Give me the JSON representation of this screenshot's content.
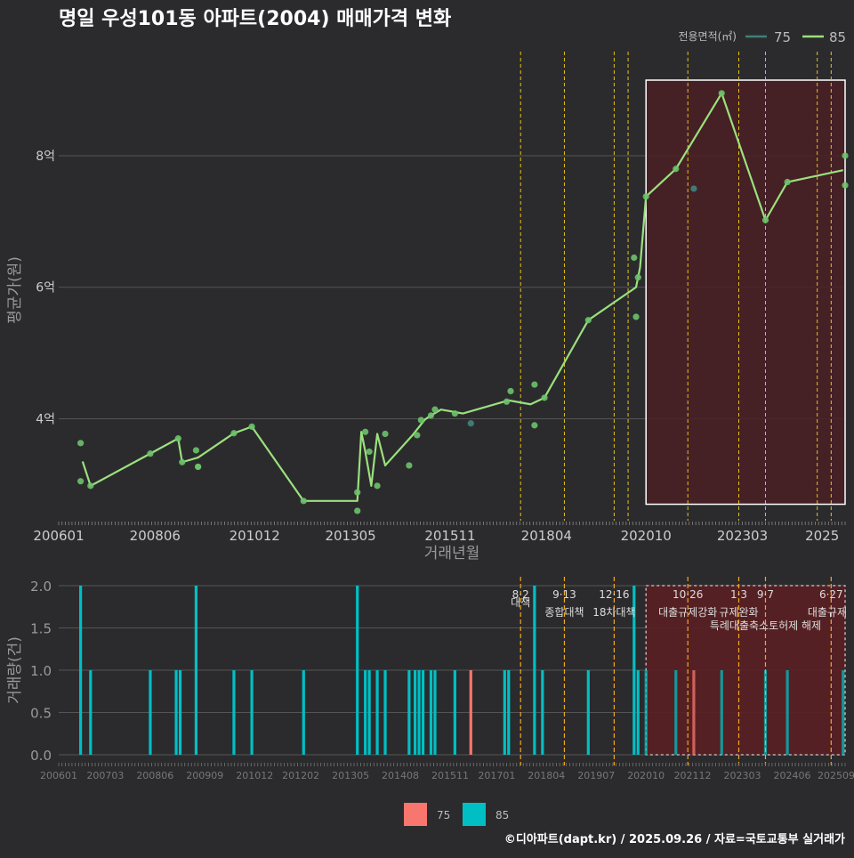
{
  "title": "명일 우성101동 아파트(2004) 매매가격 변화",
  "footer": "©디아파트(dapt.kr) / 2025.09.26 / 자료=국토교통부 실거래가",
  "colors": {
    "background": "#2b2b2d",
    "grid": "#555555",
    "line85": "#9be07d",
    "point85": "#6cc36a",
    "point75": "#3f7f79",
    "bar75": "#f8766d",
    "bar85": "#00bfc4",
    "policy": "#e6c21a",
    "highlight_fill": "#4a1f24",
    "text": "#dddddd",
    "axis_text": "#cccccc"
  },
  "chart_data": [
    {
      "type": "line",
      "title": "명일 우성101동 아파트(2004) 매매가격 변화",
      "xlabel": "거래년월",
      "ylabel": "평균가(원)",
      "xlim": [
        2006.0,
        2025.75
      ],
      "ylim": [
        2.45,
        9.8
      ],
      "x_tick_values": [
        2006.0,
        2008.42,
        2010.92,
        2013.33,
        2015.83,
        2018.25,
        2020.75,
        2023.17,
        2025.6
      ],
      "x_tick_labels": [
        "200601",
        "200806",
        "201012",
        "201305",
        "201511",
        "201804",
        "202010",
        "202303",
        "2025"
      ],
      "y_tick_values": [
        4,
        6,
        8
      ],
      "y_tick_labels": [
        "4억",
        "6억",
        "8억"
      ],
      "legend": {
        "title": "전용면적(㎡)",
        "entries": [
          {
            "label": "75",
            "color": "#3f7f79"
          },
          {
            "label": "85",
            "color": "#9be07d"
          }
        ]
      },
      "series": [
        {
          "name": "85",
          "line_x": [
            2006.6,
            2006.8,
            2008.3,
            2009.0,
            2009.1,
            2009.5,
            2010.4,
            2010.85,
            2012.15,
            2013.5,
            2013.6,
            2013.7,
            2013.85,
            2014.0,
            2014.2,
            2014.9,
            2015.2,
            2015.35,
            2015.6,
            2016.15,
            2017.3,
            2017.85,
            2018.2,
            2019.3,
            2020.5,
            2020.6,
            2020.75,
            2021.5,
            2022.65,
            2023.75,
            2024.3,
            2025.7
          ],
          "line_y": [
            3.35,
            2.98,
            3.47,
            3.7,
            3.34,
            3.41,
            3.78,
            3.88,
            2.75,
            2.75,
            3.8,
            3.5,
            2.98,
            3.77,
            3.29,
            3.76,
            3.99,
            4.05,
            4.14,
            4.08,
            4.28,
            4.22,
            4.32,
            5.5,
            6.0,
            6.3,
            7.38,
            7.8,
            8.95,
            7.02,
            7.6,
            7.78
          ],
          "points_x": [
            2006.55,
            2006.55,
            2006.8,
            2008.3,
            2009.0,
            2009.1,
            2009.45,
            2009.5,
            2009.5,
            2010.4,
            2010.85,
            2012.15,
            2013.5,
            2013.5,
            2013.7,
            2013.8,
            2014.0,
            2014.2,
            2014.8,
            2015.0,
            2015.1,
            2015.35,
            2015.45,
            2015.95,
            2017.25,
            2017.35,
            2017.95,
            2017.95,
            2018.2,
            2019.3,
            2020.45,
            2020.5,
            2020.55,
            2020.75,
            2021.5,
            2022.65,
            2023.75,
            2024.3,
            2025.75,
            2025.75
          ],
          "points_y": [
            3.63,
            3.05,
            2.98,
            3.47,
            3.7,
            3.34,
            3.52,
            3.27,
            3.27,
            3.78,
            3.88,
            2.75,
            2.88,
            2.6,
            3.8,
            3.5,
            2.98,
            3.77,
            3.29,
            3.75,
            3.98,
            4.05,
            4.14,
            4.08,
            4.26,
            4.42,
            4.52,
            3.9,
            4.32,
            5.5,
            6.45,
            5.55,
            6.15,
            7.38,
            7.8,
            8.95,
            7.02,
            7.6,
            8.0,
            7.55
          ]
        },
        {
          "name": "75",
          "points_x": [
            2016.35,
            2021.95
          ],
          "points_y": [
            3.93,
            7.5
          ]
        }
      ],
      "policy_lines_x": [
        2017.6,
        2018.7,
        2019.95,
        2020.3,
        2021.8,
        2023.08,
        2023.75,
        2025.05,
        2025.4
      ],
      "highlight_range_x": [
        2020.75,
        2025.75
      ],
      "highlight_range_y": [
        2.7,
        9.15
      ]
    },
    {
      "type": "bar",
      "xlabel": "",
      "ylabel": "거래량(건)",
      "xlim": [
        2006.0,
        2025.75
      ],
      "ylim": [
        0,
        2.0
      ],
      "y_tick_values": [
        0.0,
        0.5,
        1.0,
        1.5,
        2.0
      ],
      "y_tick_labels": [
        "0.0",
        "0.5",
        "1.0",
        "1.5",
        "2.0"
      ],
      "x_tick_values": [
        2006.0,
        2007.17,
        2008.42,
        2009.67,
        2010.92,
        2012.08,
        2013.33,
        2014.58,
        2015.83,
        2017.0,
        2018.25,
        2019.5,
        2020.75,
        2021.92,
        2023.17,
        2024.42,
        2025.75
      ],
      "x_tick_labels": [
        "200601",
        "200703",
        "200806",
        "200909",
        "201012",
        "201202",
        "201305",
        "201408",
        "201511",
        "201701",
        "201804",
        "201907",
        "202010",
        "202112",
        "202303",
        "202406",
        "202509"
      ],
      "legend": {
        "entries": [
          {
            "label": "75",
            "color": "#f8766d"
          },
          {
            "label": "85",
            "color": "#00bfc4"
          }
        ]
      },
      "series": [
        {
          "name": "85",
          "x": [
            2006.55,
            2006.8,
            2008.3,
            2008.95,
            2009.05,
            2009.45,
            2010.4,
            2010.85,
            2012.15,
            2013.5,
            2013.7,
            2013.8,
            2014.0,
            2014.2,
            2014.8,
            2014.95,
            2015.05,
            2015.15,
            2015.35,
            2015.45,
            2015.95,
            2017.2,
            2017.3,
            2017.95,
            2018.15,
            2019.3,
            2020.45,
            2020.55,
            2020.75,
            2021.5,
            2022.65,
            2023.75,
            2024.3,
            2025.7
          ],
          "values": [
            2,
            1,
            1,
            1,
            1,
            2,
            1,
            1,
            1,
            2,
            1,
            1,
            1,
            1,
            1,
            1,
            1,
            1,
            1,
            1,
            1,
            1,
            1,
            2,
            1,
            1,
            2,
            1,
            1,
            1,
            1,
            1,
            1,
            1
          ]
        },
        {
          "name": "75",
          "x": [
            2016.35,
            2021.95
          ],
          "values": [
            1,
            1
          ]
        }
      ],
      "policies": [
        {
          "x": 2017.6,
          "date": "8·2",
          "label": "대책"
        },
        {
          "x": 2018.7,
          "date": "9·13",
          "label": "종합대책"
        },
        {
          "x": 2019.95,
          "date": "12·16",
          "label": "18차대책"
        },
        {
          "x": 2021.8,
          "date": "10·26",
          "label": "대출규제강화"
        },
        {
          "x": 2023.08,
          "date": "1·3",
          "label": "규제완화"
        },
        {
          "x": 2023.75,
          "date": "9·7",
          "label": "특례대출축소토허제 해제"
        },
        {
          "x": 2025.4,
          "date": "6·27",
          "label": "대출규제"
        }
      ],
      "highlight_range_x": [
        2020.75,
        2025.75
      ]
    }
  ]
}
